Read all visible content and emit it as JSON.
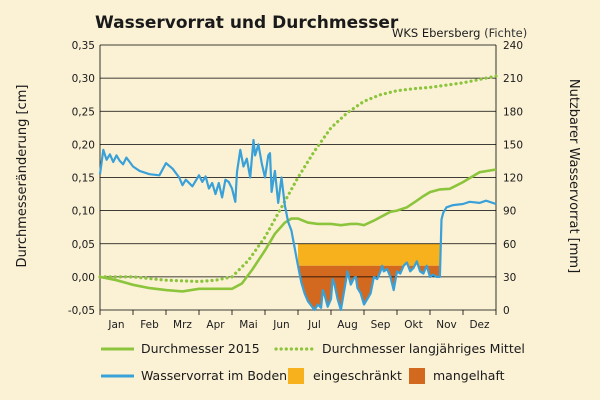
{
  "chart_data": {
    "type": "line",
    "title": "Wasservorrat und Durchmesser",
    "subtitle": "WKS Ebersberg",
    "subtitle_note": "(Fichte)",
    "ylabel_left": "Durchmesseränderung [cm]",
    "ylabel_right": "Nutzbarer Wasservorrat [mm]",
    "ylim_left": [
      -0.05,
      0.35
    ],
    "ylim_right": [
      0,
      240
    ],
    "yticks_left": [
      "0,35",
      "0,30",
      "0,25",
      "0,20",
      "0,15",
      "0,10",
      "0,05",
      "0,00",
      "-0,05"
    ],
    "yticks_right": [
      "240",
      "210",
      "180",
      "150",
      "120",
      "90",
      "60",
      "30",
      "0"
    ],
    "months": [
      "Jan",
      "Feb",
      "Mrz",
      "Apr",
      "Mai",
      "Jun",
      "Jul",
      "Aug",
      "Sep",
      "Okt",
      "Nov",
      "Dez"
    ],
    "grid": true,
    "thresholds": {
      "eingeschraenkt_mm": 60,
      "mangelhaft_mm": 40,
      "water_shading_range_months": [
        6.0,
        10.4
      ]
    },
    "series": [
      {
        "name": "Durchmesser 2015",
        "axis": "left",
        "style": "solid",
        "color": "#8cc43c",
        "x": [
          0,
          0.5,
          1,
          1.5,
          2,
          2.5,
          3,
          3.5,
          4,
          4.3,
          4.6,
          5,
          5.3,
          5.6,
          5.8,
          6,
          6.3,
          6.6,
          6.8,
          7,
          7.3,
          7.6,
          7.8,
          8,
          8.3,
          8.6,
          8.8,
          9,
          9.3,
          9.6,
          9.8,
          10,
          10.3,
          10.6,
          11,
          11.5,
          12
        ],
        "y": [
          0.0,
          -0.005,
          -0.012,
          -0.017,
          -0.02,
          -0.022,
          -0.018,
          -0.018,
          -0.018,
          -0.01,
          0.01,
          0.04,
          0.065,
          0.082,
          0.088,
          0.088,
          0.082,
          0.08,
          0.08,
          0.08,
          0.078,
          0.08,
          0.08,
          0.078,
          0.085,
          0.093,
          0.098,
          0.1,
          0.105,
          0.115,
          0.122,
          0.128,
          0.132,
          0.133,
          0.143,
          0.158,
          0.162
        ]
      },
      {
        "name": "Durchmesser langjähriges Mittel",
        "axis": "left",
        "style": "dotted",
        "color": "#8cc43c",
        "x": [
          0,
          1,
          2,
          3,
          3.5,
          4,
          4.5,
          5,
          5.5,
          6,
          6.5,
          7,
          7.5,
          8,
          8.5,
          9,
          9.5,
          10,
          11,
          12
        ],
        "y": [
          0.0,
          0.0,
          -0.005,
          -0.007,
          -0.005,
          0.0,
          0.025,
          0.06,
          0.105,
          0.15,
          0.19,
          0.225,
          0.248,
          0.265,
          0.275,
          0.281,
          0.284,
          0.286,
          0.293,
          0.303
        ]
      },
      {
        "name": "Wasservorrat im Boden",
        "axis": "right",
        "style": "solid",
        "color": "#3aa0d8",
        "x": [
          0,
          0.1,
          0.2,
          0.3,
          0.4,
          0.5,
          0.6,
          0.7,
          0.8,
          0.9,
          1.0,
          1.2,
          1.5,
          1.8,
          2.0,
          2.2,
          2.4,
          2.5,
          2.6,
          2.8,
          3.0,
          3.1,
          3.2,
          3.3,
          3.4,
          3.5,
          3.6,
          3.7,
          3.8,
          3.9,
          4.0,
          4.1,
          4.15,
          4.25,
          4.35,
          4.45,
          4.55,
          4.65,
          4.7,
          4.8,
          4.9,
          5.0,
          5.1,
          5.15,
          5.2,
          5.3,
          5.4,
          5.5,
          5.6,
          5.7,
          5.8,
          6.0,
          6.1,
          6.2,
          6.3,
          6.4,
          6.5,
          6.6,
          6.7,
          6.75,
          6.8,
          6.9,
          7.0,
          7.05,
          7.1,
          7.2,
          7.3,
          7.5,
          7.6,
          7.7,
          7.75,
          7.8,
          7.9,
          8.0,
          8.1,
          8.2,
          8.3,
          8.4,
          8.5,
          8.55,
          8.6,
          8.7,
          8.8,
          8.9,
          9.0,
          9.1,
          9.2,
          9.3,
          9.4,
          9.5,
          9.6,
          9.7,
          9.8,
          9.9,
          10.0,
          10.1,
          10.2,
          10.3,
          10.35,
          10.4,
          10.5,
          10.7,
          11.0,
          11.2,
          11.5,
          11.7,
          12.0
        ],
        "y": [
          123,
          145,
          136,
          141,
          134,
          140,
          135,
          132,
          138,
          134,
          130,
          126,
          123,
          122,
          133,
          128,
          120,
          113,
          118,
          112,
          122,
          116,
          121,
          110,
          115,
          105,
          115,
          102,
          118,
          116,
          110,
          98,
          125,
          145,
          130,
          137,
          120,
          154,
          140,
          150,
          133,
          120,
          140,
          142,
          107,
          126,
          97,
          120,
          95,
          80,
          72,
          40,
          25,
          15,
          8,
          4,
          0,
          5,
          2,
          18,
          14,
          3,
          10,
          28,
          24,
          10,
          0,
          35,
          23,
          29,
          30,
          20,
          15,
          5,
          10,
          15,
          30,
          28,
          35,
          40,
          35,
          37,
          30,
          18,
          35,
          33,
          40,
          43,
          35,
          38,
          44,
          35,
          33,
          40,
          30,
          32,
          30,
          30,
          82,
          88,
          93,
          95,
          96,
          98,
          97,
          99,
          96
        ]
      }
    ],
    "shading": [
      {
        "name": "eingeschränkt",
        "color": "#f6b11c"
      },
      {
        "name": "mangelhaft",
        "color": "#d2691e"
      }
    ]
  }
}
